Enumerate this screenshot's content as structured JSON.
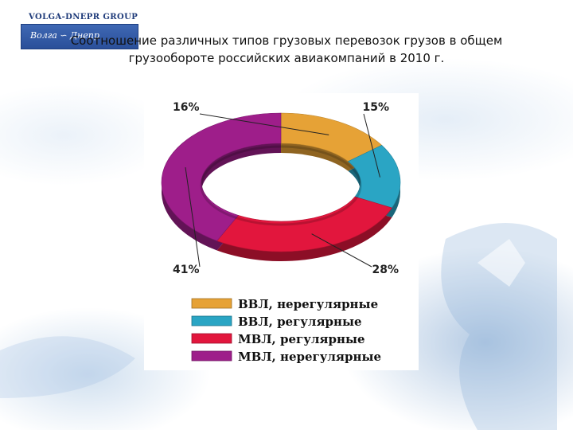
{
  "title_lines": [
    "Соотношение различных типов грузовых перевозок грузов в общем",
    "грузообороте российских авиакомпаний в 2010 г."
  ],
  "logo": {
    "top_text": "VOLGA-DNEPR GROUP",
    "sub_text": "Волга ∽ Днепр"
  },
  "colors": {
    "orange": "#e6a236",
    "teal": "#2aa5c4",
    "red": "#e2163d",
    "purple": "#9e1e8a"
  },
  "chart_data": {
    "type": "pie",
    "donut": true,
    "title": "Соотношение различных типов грузовых перевозок грузов в общем грузообороте российских авиакомпаний в 2010 г.",
    "legend_position": "bottom",
    "slices": [
      {
        "label": "ВВЛ, нерегулярные",
        "value": 16,
        "display": "16%",
        "color": "#e6a236"
      },
      {
        "label": "ВВЛ, регулярные",
        "value": 15,
        "display": "15%",
        "color": "#2aa5c4"
      },
      {
        "label": "МВЛ, регулярные",
        "value": 28,
        "display": "28%",
        "color": "#e2163d"
      },
      {
        "label": "МВЛ, нерегулярные",
        "value": 41,
        "display": "41%",
        "color": "#9e1e8a"
      }
    ]
  }
}
